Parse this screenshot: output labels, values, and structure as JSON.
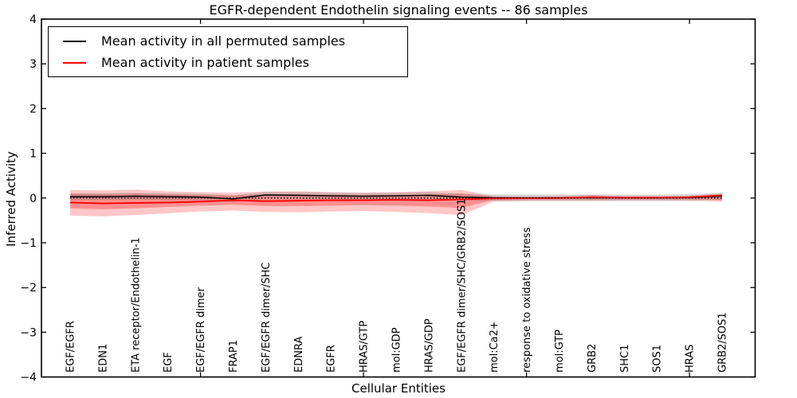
{
  "title": "EGFR-dependent Endothelin signaling events -- 86 samples",
  "axes": {
    "ylabel": "Inferred Activity",
    "xlabel": "Cellular Entities",
    "yticks": [
      {
        "label": "4",
        "value": 4
      },
      {
        "label": "3",
        "value": 3
      },
      {
        "label": "2",
        "value": 2
      },
      {
        "label": "1",
        "value": 1
      },
      {
        "label": "0",
        "value": 0
      },
      {
        "label": "−1",
        "value": -1
      },
      {
        "label": "−2",
        "value": -2
      },
      {
        "label": "−3",
        "value": -3
      },
      {
        "label": "−4",
        "value": -4
      }
    ]
  },
  "legend": {
    "entries": [
      {
        "label": "Mean activity in all permuted samples",
        "color": "#000000"
      },
      {
        "label": "Mean activity in patient samples",
        "color": "#ff0000"
      }
    ]
  },
  "chart_data": {
    "type": "line",
    "title": "EGFR-dependent Endothelin signaling events -- 86 samples",
    "xlabel": "Cellular Entities",
    "ylabel": "Inferred Activity",
    "ylim": [
      -4,
      4
    ],
    "grid": false,
    "legend_position": "upper left",
    "categories": [
      "EGF/EGFR",
      "EDN1",
      "ETA receptor/Endothelin-1",
      "EGF",
      "EGF/EGFR dimer",
      "FRAP1",
      "EGF/EGFR dimer/SHC",
      "EDNRA",
      "EGFR",
      "HRAS/GTP",
      "mol:GDP",
      "HRAS/GDP",
      "EGF/EGFR dimer/SHC/GRB2/SOS1",
      "mol:Ca2+",
      "response to oxidative stress",
      "mol:GTP",
      "GRB2",
      "SHC1",
      "SOS1",
      "HRAS",
      "GRB2/SOS1"
    ],
    "x_major_tick_indices": [
      4,
      9,
      14,
      19
    ],
    "series": [
      {
        "name": "Mean activity in all permuted samples",
        "color": "#000000",
        "style": "solid",
        "values": [
          0.03,
          0.03,
          0.04,
          0.03,
          0.02,
          -0.02,
          0.07,
          0.06,
          0.05,
          0.04,
          0.05,
          0.06,
          0.02,
          0.005,
          0.005,
          0.005,
          0.005,
          0.005,
          0.005,
          0.01,
          0.04
        ]
      },
      {
        "name": "Mean activity in patient samples",
        "color": "#ff0000",
        "style": "solid",
        "values": [
          -0.1,
          -0.12,
          -0.11,
          -0.1,
          -0.08,
          -0.05,
          -0.07,
          -0.06,
          -0.05,
          -0.05,
          -0.04,
          -0.05,
          -0.03,
          -0.01,
          -0.005,
          0.0,
          0.02,
          0.01,
          0.01,
          0.02,
          0.06
        ]
      },
      {
        "name": "zero reference",
        "color": "#000000",
        "style": "dotted",
        "values": [
          0,
          0,
          0,
          0,
          0,
          0,
          0,
          0,
          0,
          0,
          0,
          0,
          0,
          0,
          0,
          0,
          0,
          0,
          0,
          0,
          0
        ]
      }
    ],
    "bands": [
      {
        "name": "patient-outer",
        "color": "rgba(255,0,0,0.22)",
        "upper": [
          0.18,
          0.17,
          0.19,
          0.15,
          0.13,
          0.12,
          0.14,
          0.15,
          0.13,
          0.12,
          0.13,
          0.15,
          0.18,
          0.04,
          0.03,
          0.04,
          0.07,
          0.04,
          0.04,
          0.05,
          0.1
        ],
        "lower": [
          -0.39,
          -0.41,
          -0.38,
          -0.34,
          -0.3,
          -0.28,
          -0.31,
          -0.32,
          -0.3,
          -0.29,
          -0.31,
          -0.34,
          -0.38,
          -0.08,
          -0.06,
          -0.06,
          -0.06,
          -0.05,
          -0.05,
          -0.06,
          -0.08
        ]
      },
      {
        "name": "patient-inner",
        "color": "rgba(255,0,0,0.28)",
        "upper": [
          0.1,
          0.09,
          0.1,
          0.08,
          0.07,
          0.06,
          0.08,
          0.08,
          0.07,
          0.06,
          0.07,
          0.08,
          0.1,
          0.02,
          0.015,
          0.02,
          0.04,
          0.02,
          0.02,
          0.03,
          0.07
        ],
        "lower": [
          -0.23,
          -0.25,
          -0.23,
          -0.2,
          -0.17,
          -0.15,
          -0.18,
          -0.18,
          -0.17,
          -0.16,
          -0.17,
          -0.19,
          -0.22,
          -0.04,
          -0.03,
          -0.03,
          -0.03,
          -0.03,
          -0.03,
          -0.03,
          -0.05
        ]
      },
      {
        "name": "permuted",
        "color": "rgba(110,110,110,0.28)",
        "upper": [
          0.105,
          0.105,
          0.115,
          0.105,
          0.095,
          0.055,
          0.145,
          0.135,
          0.125,
          0.115,
          0.125,
          0.135,
          0.095,
          0.08,
          0.08,
          0.08,
          0.08,
          0.08,
          0.08,
          0.085,
          0.115
        ],
        "lower": [
          -0.045,
          -0.045,
          -0.035,
          -0.045,
          -0.055,
          -0.095,
          -0.005,
          -0.015,
          -0.025,
          -0.035,
          -0.025,
          -0.015,
          -0.055,
          -0.07,
          -0.07,
          -0.07,
          -0.07,
          -0.07,
          -0.07,
          -0.065,
          -0.035
        ]
      }
    ]
  }
}
